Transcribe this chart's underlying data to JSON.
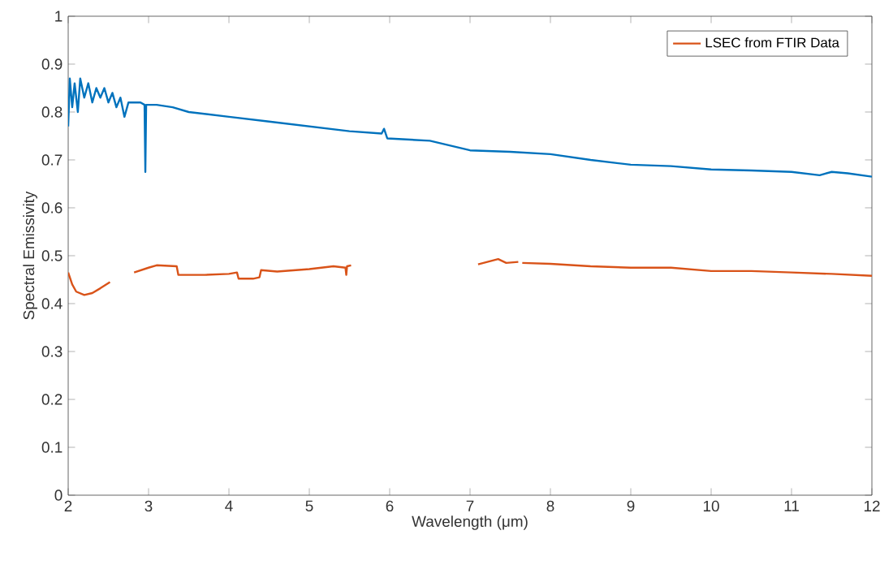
{
  "chart_data": {
    "type": "line",
    "xlabel": "Wavelength (μm)",
    "ylabel": "Spectral Emissivity",
    "xlim": [
      2,
      12
    ],
    "ylim": [
      0,
      1
    ],
    "xticks": [
      2,
      3,
      4,
      5,
      6,
      7,
      8,
      9,
      10,
      11,
      12
    ],
    "yticks": [
      0,
      0.1,
      0.2,
      0.3,
      0.4,
      0.5,
      0.6,
      0.7,
      0.8,
      0.9,
      1
    ],
    "legend": "top right",
    "marker": "none",
    "line_style": "solid",
    "series": [
      {
        "color": "#0072bd",
        "x": [
          2.0,
          2.02,
          2.05,
          2.08,
          2.12,
          2.15,
          2.2,
          2.25,
          2.3,
          2.35,
          2.4,
          2.45,
          2.5,
          2.55,
          2.6,
          2.65,
          2.7,
          2.75,
          2.8,
          2.9,
          2.95,
          2.96,
          2.97,
          3.1,
          3.3,
          3.5,
          4.0,
          4.5,
          5.0,
          5.5,
          5.9,
          5.93,
          5.97,
          6.5,
          7.0,
          7.5,
          8.0,
          8.5,
          9.0,
          9.5,
          10.0,
          10.5,
          11.0,
          11.35,
          11.5,
          11.7,
          12.0
        ],
        "values": [
          0.77,
          0.87,
          0.81,
          0.86,
          0.8,
          0.87,
          0.83,
          0.86,
          0.82,
          0.85,
          0.83,
          0.85,
          0.82,
          0.84,
          0.81,
          0.83,
          0.79,
          0.82,
          0.82,
          0.82,
          0.815,
          0.675,
          0.815,
          0.815,
          0.81,
          0.8,
          0.79,
          0.78,
          0.77,
          0.76,
          0.755,
          0.765,
          0.745,
          0.74,
          0.72,
          0.717,
          0.712,
          0.7,
          0.69,
          0.687,
          0.68,
          0.678,
          0.675,
          0.668,
          0.675,
          0.672,
          0.665
        ]
      },
      {
        "name": "LSEC from FTIR Data",
        "color": "#d95319",
        "x": [
          2.0,
          2.05,
          2.1,
          2.2,
          2.3,
          2.4,
          2.52,
          2.65,
          2.82,
          3.0,
          3.1,
          3.35,
          3.37,
          3.7,
          4.0,
          4.1,
          4.12,
          4.3,
          4.38,
          4.4,
          4.6,
          5.0,
          5.3,
          5.45,
          5.46,
          5.47,
          5.52,
          6.3,
          7.1,
          7.35,
          7.45,
          7.6,
          7.62,
          7.65,
          8.0,
          8.5,
          9.0,
          9.5,
          10.0,
          10.5,
          11.0,
          11.5,
          12.0
        ],
        "values": [
          0.465,
          0.44,
          0.425,
          0.418,
          0.422,
          0.432,
          0.445,
          null,
          0.465,
          0.475,
          0.48,
          0.478,
          0.46,
          0.46,
          0.462,
          0.465,
          0.452,
          0.452,
          0.455,
          0.47,
          0.467,
          0.472,
          0.478,
          0.475,
          0.46,
          0.478,
          0.48,
          null,
          0.482,
          0.493,
          0.485,
          0.487,
          null,
          0.485,
          0.483,
          0.478,
          0.475,
          0.475,
          0.468,
          0.468,
          0.465,
          0.462,
          0.458
        ]
      }
    ]
  }
}
